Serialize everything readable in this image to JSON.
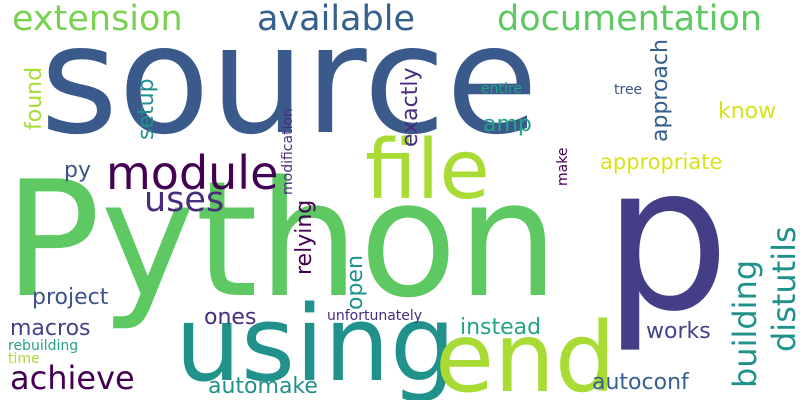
{
  "words": {
    "source": "source",
    "Python": "Python",
    "p": "p",
    "using": "using",
    "end": "end",
    "file": "file",
    "module": "module",
    "documentation": "documentation",
    "extension": "extension",
    "available": "available",
    "distutils": "distutils",
    "building": "building",
    "achieve": "achieve",
    "uses": "uses",
    "project": "project",
    "approach": "approach",
    "exactly": "exactly",
    "appropriate": "appropriate",
    "automake": "automake",
    "autoconf": "autoconf",
    "macros": "macros",
    "instead": "instead",
    "works": "works",
    "relying": "relying",
    "open": "open",
    "ones": "ones",
    "found": "found",
    "setup": "setup",
    "know": "know",
    "py": "py",
    "amp": "amp",
    "entire": "entire",
    "tree": "tree",
    "modification": "modification",
    "make": "make",
    "unfortunately": "unfortunately",
    "rebuilding": "rebuilding",
    "time": "time"
  }
}
